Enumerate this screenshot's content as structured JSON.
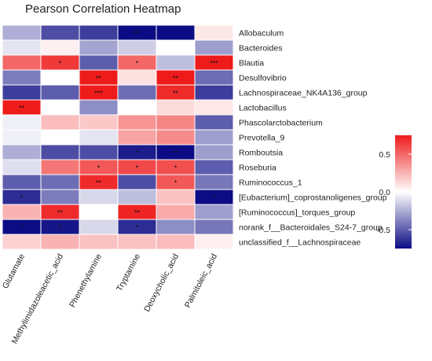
{
  "chart_data": {
    "type": "heatmap",
    "title": "Pearson Correlation Heatmap",
    "columns": [
      "Glutamate",
      "Methylimidazoleacetic_acid",
      "Phenethylamine",
      "Tryptamine",
      "Deoxycholic_acid",
      "Palmitoleic_acid"
    ],
    "rows": [
      "Allobaculum",
      "Bacteroides",
      "Blautia",
      "Desulfovibrio",
      "Lachnospiraceae_NK4A136_group",
      "Lactobacillus",
      "Phascolarctobacterium",
      "Prevotella_9",
      "Romboutsia",
      "Roseburia",
      "Ruminococcus_1",
      "[Eubacterium]_coprostanoligenes_group",
      "[Ruminococcus]_torques_group",
      "norank_f__Bacteroidales_S24-7_group",
      "unclassified_f__Lachnospiraceae"
    ],
    "values": [
      [
        -0.25,
        -0.55,
        -0.6,
        -0.85,
        -0.95,
        0.08
      ],
      [
        -0.08,
        0.05,
        -0.28,
        -0.15,
        0.0,
        -0.3
      ],
      [
        0.5,
        0.65,
        -0.5,
        0.5,
        -0.2,
        0.85
      ],
      [
        -0.4,
        0.0,
        0.75,
        0.1,
        0.75,
        -0.45
      ],
      [
        -0.6,
        -0.5,
        0.9,
        -0.45,
        0.7,
        -0.6
      ],
      [
        0.75,
        0.0,
        -0.35,
        0.0,
        0.12,
        0.08
      ],
      [
        -0.05,
        0.22,
        0.18,
        0.35,
        0.4,
        -0.5
      ],
      [
        -0.05,
        0.0,
        -0.08,
        0.3,
        0.38,
        -0.3
      ],
      [
        -0.25,
        -0.55,
        -0.55,
        -0.7,
        -0.82,
        -0.3
      ],
      [
        -0.1,
        0.45,
        0.55,
        0.6,
        0.58,
        -0.5
      ],
      [
        -0.5,
        -0.45,
        0.7,
        -0.55,
        0.55,
        -0.42
      ],
      [
        -0.65,
        -0.4,
        -0.12,
        -0.2,
        0.2,
        -0.75
      ],
      [
        0.25,
        0.7,
        0.0,
        0.72,
        0.28,
        -0.3
      ],
      [
        -0.8,
        -0.72,
        -0.12,
        -0.65,
        -0.35,
        -0.42
      ],
      [
        0.15,
        0.25,
        0.2,
        0.2,
        0.22,
        0.05
      ]
    ],
    "significance": [
      [
        "",
        "",
        "",
        "**",
        "",
        ""
      ],
      [
        "",
        "",
        "",
        "",
        "",
        ""
      ],
      [
        "",
        "*",
        "",
        "*",
        "",
        "***"
      ],
      [
        "",
        "",
        "**",
        "",
        "**",
        ""
      ],
      [
        "",
        "",
        "***",
        "",
        "**",
        ""
      ],
      [
        "**",
        "",
        "",
        "",
        "",
        ""
      ],
      [
        "",
        "",
        "",
        "",
        "",
        ""
      ],
      [
        "",
        "",
        "",
        "",
        "",
        ""
      ],
      [
        "",
        "",
        "",
        "*",
        "**",
        ""
      ],
      [
        "",
        "",
        "*",
        "*",
        "*",
        ""
      ],
      [
        "",
        "",
        "**",
        "",
        "*",
        ""
      ],
      [
        "*",
        "",
        "",
        "",
        "",
        "*"
      ],
      [
        "",
        "**",
        "",
        "**",
        "",
        ""
      ],
      [
        "*",
        "*",
        "",
        "*",
        "",
        ""
      ],
      [
        "",
        "",
        "",
        "",
        "",
        ""
      ]
    ],
    "colorscale": {
      "low": "#0c0c84",
      "mid": "#ffffff",
      "high": "#ee1b1b",
      "range": [
        -0.75,
        0.75
      ]
    },
    "legend": {
      "placement": "right",
      "ticks": [
        0.5,
        0.0,
        -0.5
      ],
      "tick_labels": [
        "0.5",
        "0.0",
        "-0.5"
      ]
    }
  }
}
